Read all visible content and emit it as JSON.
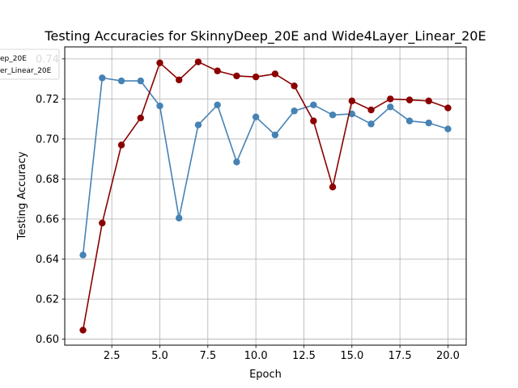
{
  "chart_data": {
    "type": "line",
    "title": "Testing Accuracies for SkinnyDeep_20E and Wide4Layer_Linear_20E",
    "xlabel": "Epoch",
    "ylabel": "Testing Accuracy",
    "xlim": [
      0.05,
      20.95
    ],
    "ylim": [
      0.597,
      0.746
    ],
    "xticks": [
      2.5,
      5.0,
      7.5,
      10.0,
      12.5,
      15.0,
      17.5,
      20.0
    ],
    "xtick_labels": [
      "2.5",
      "5.0",
      "7.5",
      "10.0",
      "12.5",
      "15.0",
      "17.5",
      "20.0"
    ],
    "yticks": [
      0.6,
      0.62,
      0.64,
      0.66,
      0.68,
      0.7,
      0.72,
      0.74
    ],
    "ytick_labels": [
      "0.60",
      "0.62",
      "0.64",
      "0.66",
      "0.68",
      "0.70",
      "0.72",
      "0.74"
    ],
    "grid": true,
    "legend_position": "top-left",
    "x": [
      1,
      2,
      3,
      4,
      5,
      6,
      7,
      8,
      9,
      10,
      11,
      12,
      13,
      14,
      15,
      16,
      17,
      18,
      19,
      20
    ],
    "series": [
      {
        "name": "SkinnyDeep_20E",
        "legend_label": "ep_20E",
        "color": "#4682b4",
        "values": [
          0.642,
          0.7305,
          0.729,
          0.729,
          0.7165,
          0.6605,
          0.707,
          0.717,
          0.6885,
          0.711,
          0.702,
          0.714,
          0.717,
          0.712,
          0.7125,
          0.7075,
          0.716,
          0.709,
          0.708,
          0.705
        ]
      },
      {
        "name": "Wide4Layer_Linear_20E",
        "legend_label": "er_Linear_20E",
        "color": "#8b0000",
        "values": [
          0.6045,
          0.658,
          0.697,
          0.7105,
          0.738,
          0.7295,
          0.7385,
          0.734,
          0.7315,
          0.731,
          0.7325,
          0.7265,
          0.709,
          0.676,
          0.719,
          0.7145,
          0.72,
          0.7195,
          0.719,
          0.7155
        ]
      }
    ]
  }
}
